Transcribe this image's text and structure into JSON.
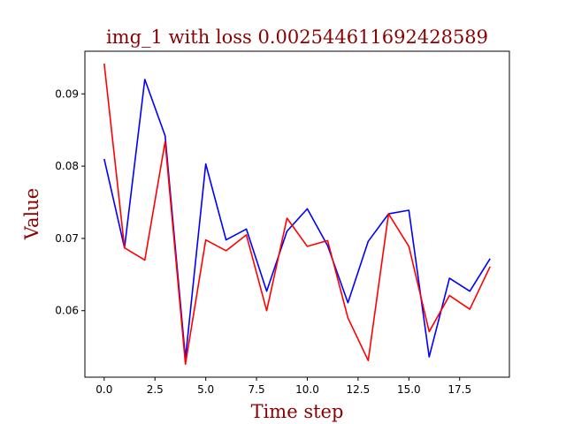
{
  "chart_data": {
    "type": "line",
    "title": "img_1 with loss 0.002544611692428589",
    "xlabel": "Time step",
    "ylabel": "Value",
    "xlim": [
      -0.95,
      19.95
    ],
    "ylim": [
      0.0508,
      0.0959
    ],
    "x_ticks": [
      0.0,
      2.5,
      5.0,
      7.5,
      10.0,
      12.5,
      15.0,
      17.5
    ],
    "x_tick_labels": [
      "0.0",
      "2.5",
      "5.0",
      "7.5",
      "10.0",
      "12.5",
      "15.0",
      "17.5"
    ],
    "y_ticks": [
      0.06,
      0.07,
      0.08,
      0.09
    ],
    "y_tick_labels": [
      "0.06",
      "0.07",
      "0.08",
      "0.09"
    ],
    "grid": false,
    "x": [
      0,
      1,
      2,
      3,
      4,
      5,
      6,
      7,
      8,
      9,
      10,
      11,
      12,
      13,
      14,
      15,
      16,
      17,
      18,
      19
    ],
    "series": [
      {
        "color": "#0000ff",
        "values": [
          0.081,
          0.0687,
          0.092,
          0.0842,
          0.0534,
          0.0803,
          0.0698,
          0.0713,
          0.0627,
          0.071,
          0.0741,
          0.069,
          0.0611,
          0.0696,
          0.0734,
          0.0739,
          0.0536,
          0.0645,
          0.0627,
          0.0672
        ]
      },
      {
        "color": "#ff0000",
        "values": [
          0.0942,
          0.0687,
          0.067,
          0.0834,
          0.0526,
          0.0698,
          0.0683,
          0.0705,
          0.06,
          0.0728,
          0.0689,
          0.0697,
          0.059,
          0.0531,
          0.0734,
          0.0689,
          0.0571,
          0.0621,
          0.0602,
          0.0661
        ]
      }
    ]
  }
}
